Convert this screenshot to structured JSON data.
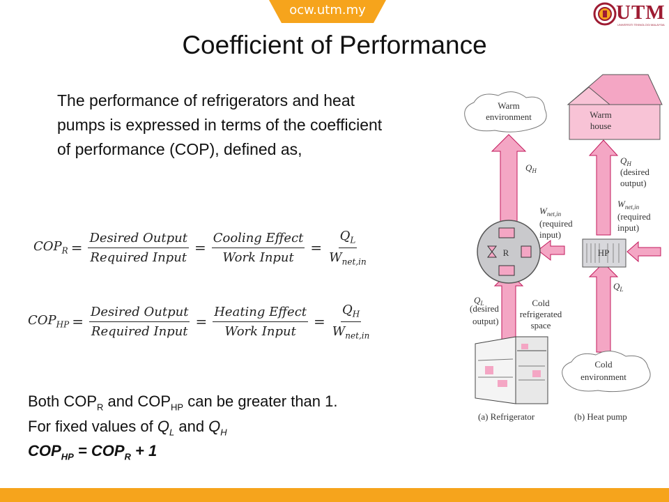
{
  "header": {
    "site": "ocw.utm.my",
    "logo": "UTM",
    "logo_subtitle": "UNIVERSITI TEKNOLOGI MALAYSIA"
  },
  "title": "Coefficient of Performance",
  "intro": "The performance of refrigerators and heat pumps is expressed in terms of the coefficient of performance (COP), defined as,",
  "eq_r": {
    "lhs": "COP",
    "lhs_sub": "R",
    "f1_num": "Desired Output",
    "f1_den": "Required Input",
    "f2_num": "Cooling Effect",
    "f2_den": "Work Input",
    "f3_num": "Q",
    "f3_num_sub": "L",
    "f3_den": "W",
    "f3_den_sub": "net,in"
  },
  "eq_hp": {
    "lhs": "COP",
    "lhs_sub": "HP",
    "f1_num": "Desired Output",
    "f1_den": "Required Input",
    "f2_num": "Heating Effect",
    "f2_den": "Work Input",
    "f3_num": "Q",
    "f3_num_sub": "H",
    "f3_den": "W",
    "f3_den_sub": "net,in"
  },
  "notes": {
    "line1_a": "Both COP",
    "line1_sub1": "R",
    "line1_b": " and COP",
    "line1_sub2": "HP",
    "line1_c": " can be greater than 1.",
    "line2_a": "For fixed values of ",
    "line2_q": "Q",
    "line2_sub1": "L",
    "line2_b": " and ",
    "line2_sub2": "H",
    "line3_a": "COP",
    "line3_sub1": "HP",
    "line3_b": " = COP",
    "line3_sub2": "R",
    "line3_c": " + 1"
  },
  "diagram": {
    "warm_env_1": "Warm",
    "warm_env_2": "environment",
    "warm_house_1": "Warm",
    "warm_house_2": "house",
    "qh": "Q",
    "qh_sub": "H",
    "qh_desired_1": "(desired",
    "qh_desired_2": "output)",
    "wnet": "W",
    "wnet_sub": "net,in",
    "req_1": "(required",
    "req_2": "input)",
    "r_label": "R",
    "hp_label": "HP",
    "ql": "Q",
    "ql_sub": "L",
    "ql_desired_1": "(desired",
    "ql_desired_2": "output)",
    "cold_space_1": "Cold",
    "cold_space_2": "refrigerated",
    "cold_space_3": "space",
    "cold_env_1": "Cold",
    "cold_env_2": "environment",
    "caption_a": "(a) Refrigerator",
    "caption_b": "(b) Heat pump"
  },
  "colors": {
    "accent": "#f6a41c",
    "arrow_fill": "#f4a6c4",
    "arrow_stroke": "#c2185b",
    "logo_red": "#9e1b32"
  }
}
